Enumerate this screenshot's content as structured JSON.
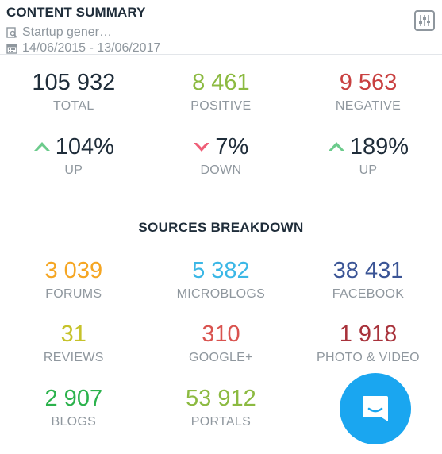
{
  "header": {
    "title": "CONTENT SUMMARY",
    "query": "Startup gener…",
    "date_range": "14/06/2015 - 13/06/2017"
  },
  "totals": [
    {
      "value": "105 932",
      "label": "TOTAL",
      "color": "#1f2d3a"
    },
    {
      "value": "8 461",
      "label": "POSITIVE",
      "color": "#8cba41"
    },
    {
      "value": "9 563",
      "label": "NEGATIVE",
      "color": "#c94040"
    }
  ],
  "changes": [
    {
      "value": "104%",
      "label": "UP",
      "direction": "up",
      "arrow_color": "#6ccb8c"
    },
    {
      "value": "7%",
      "label": "DOWN",
      "direction": "down",
      "arrow_color": "#ef5f78"
    },
    {
      "value": "189%",
      "label": "UP",
      "direction": "up",
      "arrow_color": "#6ccb8c"
    }
  ],
  "sources": {
    "title": "SOURCES BREAKDOWN",
    "items": [
      {
        "value": "3 039",
        "label": "FORUMS",
        "color": "#f5a623"
      },
      {
        "value": "5 382",
        "label": "MICROBLOGS",
        "color": "#3bb7e6"
      },
      {
        "value": "38 431",
        "label": "FACEBOOK",
        "color": "#3b5596"
      },
      {
        "value": "31",
        "label": "REVIEWS",
        "color": "#c6c22a"
      },
      {
        "value": "310",
        "label": "GOOGLE+",
        "color": "#d9534f"
      },
      {
        "value": "1 918",
        "label": "PHOTO & VIDEO",
        "color": "#a8323b"
      },
      {
        "value": "2 907",
        "label": "BLOGS",
        "color": "#2bb24c"
      },
      {
        "value": "53 912",
        "label": "PORTALS",
        "color": "#8cba41"
      }
    ]
  },
  "icons": {
    "query": "search-document-icon",
    "date": "calendar-icon",
    "settings": "sliders-icon",
    "chat": "chat-icon"
  }
}
